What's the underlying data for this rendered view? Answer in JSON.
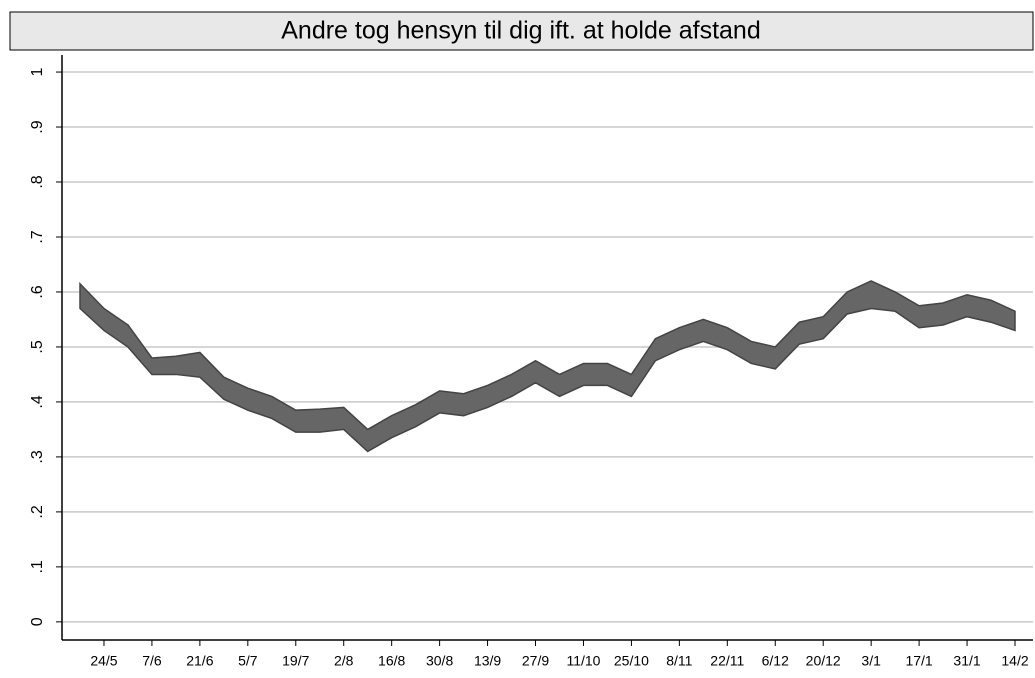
{
  "chart_data": {
    "type": "band",
    "title": "Andre tog hensyn til dig ift. at holde afstand",
    "categories": [
      null,
      "24/5",
      null,
      "7/6",
      null,
      "21/6",
      null,
      "5/7",
      null,
      "19/7",
      null,
      "2/8",
      null,
      "16/8",
      null,
      "30/8",
      null,
      "13/9",
      null,
      "27/9",
      null,
      "11/10",
      null,
      "25/10",
      null,
      "8/11",
      null,
      "22/11",
      null,
      "6/12",
      null,
      "20/12",
      null,
      "3/1",
      null,
      "17/1",
      null,
      "31/1",
      null,
      "14/2"
    ],
    "upper": [
      0.615,
      0.57,
      0.54,
      0.48,
      0.483,
      0.49,
      0.445,
      0.425,
      0.41,
      0.385,
      0.387,
      0.39,
      0.35,
      0.375,
      0.395,
      0.42,
      0.415,
      0.43,
      0.45,
      0.475,
      0.45,
      0.47,
      0.47,
      0.45,
      0.515,
      0.535,
      0.55,
      0.535,
      0.51,
      0.5,
      0.545,
      0.555,
      0.6,
      0.62,
      0.6,
      0.575,
      0.58,
      0.595,
      0.585,
      0.565
    ],
    "lower": [
      0.57,
      0.53,
      0.5,
      0.45,
      0.45,
      0.445,
      0.405,
      0.385,
      0.37,
      0.345,
      0.345,
      0.35,
      0.31,
      0.335,
      0.355,
      0.38,
      0.375,
      0.39,
      0.41,
      0.435,
      0.41,
      0.43,
      0.43,
      0.41,
      0.475,
      0.495,
      0.51,
      0.495,
      0.47,
      0.46,
      0.505,
      0.515,
      0.56,
      0.57,
      0.565,
      0.535,
      0.54,
      0.555,
      0.545,
      0.53
    ],
    "color": "#666666",
    "ylim": [
      -0.033,
      1.031
    ],
    "yticks": [
      {
        "value": 0,
        "label": "0"
      },
      {
        "value": 0.1,
        "label": ".1"
      },
      {
        "value": 0.2,
        "label": ".2"
      },
      {
        "value": 0.3,
        "label": ".3"
      },
      {
        "value": 0.4,
        "label": ".4"
      },
      {
        "value": 0.5,
        "label": ".5"
      },
      {
        "value": 0.6,
        "label": ".6"
      },
      {
        "value": 0.7,
        "label": ".7"
      },
      {
        "value": 0.8,
        "label": ".8"
      },
      {
        "value": 0.9,
        "label": ".9"
      },
      {
        "value": 1,
        "label": "1"
      }
    ],
    "grid": true
  }
}
